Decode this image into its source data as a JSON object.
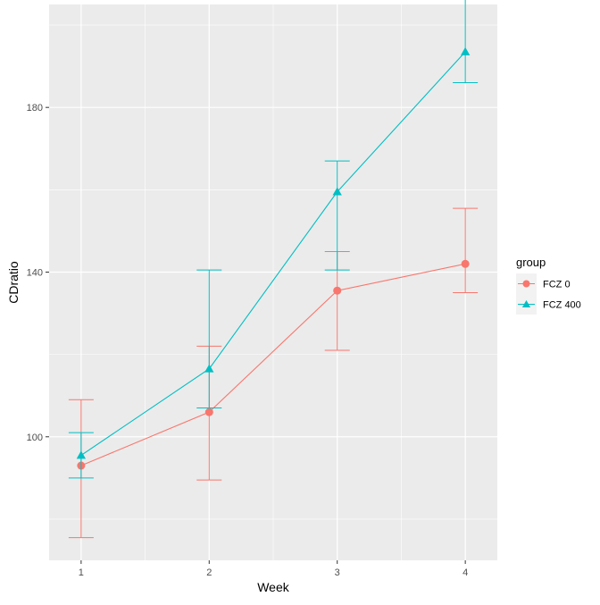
{
  "chart_data": {
    "type": "line",
    "xlabel": "Week",
    "ylabel": "CDratio",
    "x": [
      1,
      2,
      3,
      4
    ],
    "x_tick_labels": [
      "1",
      "2",
      "3",
      "4"
    ],
    "y_ticks": [
      100,
      140,
      180
    ],
    "y_tick_labels": [
      "100",
      "140",
      "180"
    ],
    "xlim": [
      0.75,
      4.25
    ],
    "ylim": [
      70,
      205
    ],
    "grid": true,
    "panel_background": "#ebebeb",
    "legend": {
      "title": "group",
      "position": "right"
    },
    "series": [
      {
        "name": "FCZ 0",
        "color": "#F8766D",
        "marker": "circle",
        "values": [
          93,
          106,
          135.5,
          142
        ],
        "error_low": [
          75.5,
          89.5,
          121,
          135
        ],
        "error_high": [
          109,
          122,
          145,
          155.5
        ]
      },
      {
        "name": "FCZ 400",
        "color": "#00BFC4",
        "marker": "triangle",
        "values": [
          95.5,
          116.5,
          159.5,
          193.5
        ],
        "error_low": [
          90,
          107,
          140.5,
          186
        ],
        "error_high": [
          101,
          140.5,
          167,
          208
        ]
      }
    ]
  }
}
